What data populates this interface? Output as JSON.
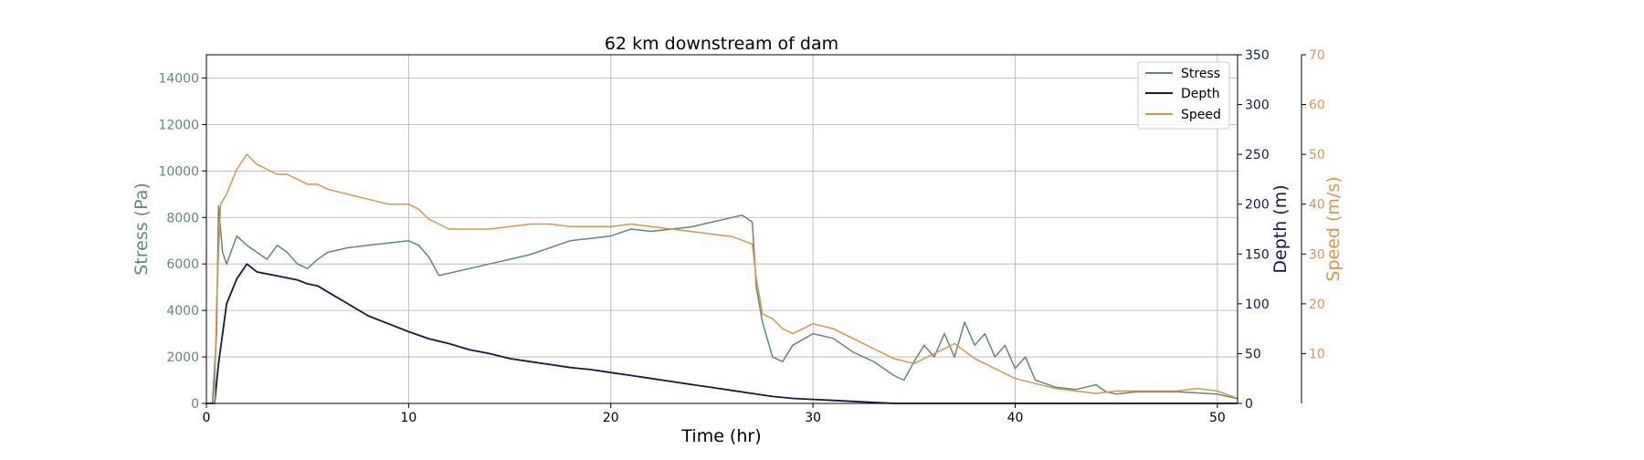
{
  "chart_data": {
    "type": "line",
    "title": "62 km downstream of dam",
    "xlabel": "Time (hr)",
    "xlim": [
      0,
      51
    ],
    "xticks": [
      0,
      10,
      20,
      30,
      40,
      50
    ],
    "grid": true,
    "legend": {
      "placement": "top-right",
      "entries": [
        "Stress",
        "Depth",
        "Speed"
      ]
    },
    "axes": {
      "stress": {
        "label": "Stress (Pa)",
        "side": "left",
        "ylim": [
          0,
          15000
        ],
        "ticks": [
          0,
          2000,
          4000,
          6000,
          8000,
          10000,
          12000,
          14000
        ],
        "color": "#5f8a72"
      },
      "depth": {
        "label": "Depth (m)",
        "side": "right",
        "ylim": [
          0,
          350
        ],
        "ticks": [
          0,
          50,
          100,
          150,
          200,
          250,
          300,
          350
        ],
        "color": "#0d1b4d"
      },
      "speed": {
        "label": "Speed (m/s)",
        "side": "right-outer",
        "ylim": [
          0,
          70
        ],
        "ticks": [
          10,
          20,
          30,
          40,
          50,
          60,
          70
        ],
        "color": "#d9954a"
      }
    },
    "series": [
      {
        "name": "Stress",
        "axis": "stress",
        "color": "#5f8a72",
        "x": [
          0,
          0.3,
          0.5,
          0.6,
          0.8,
          1,
          1.5,
          2,
          2.5,
          3,
          3.5,
          4,
          4.5,
          5,
          5.5,
          6,
          7,
          8,
          9,
          10,
          10.5,
          11,
          11.5,
          12,
          13,
          14,
          15,
          16,
          17,
          18,
          19,
          20,
          21,
          22,
          23,
          24,
          25,
          26,
          26.5,
          27,
          27.2,
          27.5,
          28,
          28.5,
          29,
          30,
          31,
          32,
          33,
          34,
          34.5,
          35,
          35.5,
          36,
          36.5,
          37,
          37.5,
          38,
          38.5,
          39,
          39.5,
          40,
          40.5,
          41,
          42,
          43,
          44,
          44.5,
          45,
          46,
          47,
          48,
          49,
          50,
          51
        ],
        "y": [
          0,
          0,
          3000,
          8500,
          6500,
          6000,
          7200,
          6800,
          6500,
          6200,
          6800,
          6500,
          6000,
          5800,
          6200,
          6500,
          6700,
          6800,
          6900,
          7000,
          6800,
          6300,
          5500,
          5600,
          5800,
          6000,
          6200,
          6400,
          6700,
          7000,
          7100,
          7200,
          7500,
          7400,
          7500,
          7600,
          7800,
          8000,
          8100,
          7800,
          5000,
          3500,
          2000,
          1800,
          2500,
          3000,
          2800,
          2200,
          1800,
          1200,
          1000,
          1800,
          2500,
          2000,
          3000,
          2000,
          3500,
          2500,
          3000,
          2000,
          2500,
          1500,
          2000,
          1000,
          700,
          600,
          800,
          500,
          400,
          500,
          500,
          500,
          450,
          400,
          200
        ]
      },
      {
        "name": "Depth",
        "axis": "depth",
        "color": "#0d1b4d",
        "x": [
          0,
          0.4,
          0.6,
          0.8,
          1,
          1.5,
          2,
          2.5,
          3,
          3.5,
          4,
          4.5,
          5,
          5.5,
          6,
          7,
          8,
          9,
          10,
          11,
          12,
          13,
          14,
          15,
          16,
          17,
          18,
          19,
          20,
          21,
          22,
          23,
          24,
          25,
          26,
          27,
          28,
          29,
          30,
          31,
          32,
          33,
          34,
          35,
          40,
          45,
          51
        ],
        "y": [
          0,
          0,
          40,
          70,
          100,
          125,
          140,
          132,
          130,
          128,
          126,
          124,
          120,
          118,
          112,
          100,
          88,
          80,
          72,
          65,
          60,
          54,
          50,
          45,
          42,
          39,
          36,
          34,
          31,
          28,
          25,
          22,
          19,
          16,
          13,
          10,
          7,
          5,
          4,
          3,
          2,
          1,
          0,
          0,
          0,
          0,
          0
        ]
      },
      {
        "name": "Speed",
        "axis": "speed",
        "color": "#d9954a",
        "x": [
          0,
          0.4,
          0.5,
          0.7,
          1,
          1.5,
          2,
          2.5,
          3,
          3.5,
          4,
          4.5,
          5,
          5.5,
          6,
          7,
          8,
          9,
          10,
          10.5,
          11,
          11.5,
          12,
          13,
          14,
          15,
          16,
          17,
          18,
          19,
          20,
          21,
          22,
          23,
          24,
          25,
          26,
          27,
          27.2,
          27.5,
          28,
          28.5,
          29,
          30,
          31,
          32,
          33,
          34,
          35,
          36,
          37,
          38,
          39,
          40,
          41,
          42,
          43,
          44,
          45,
          46,
          47,
          48,
          49,
          50,
          51
        ],
        "y": [
          0,
          0,
          20,
          40,
          42,
          47,
          50,
          48,
          47,
          46,
          46,
          45,
          44,
          44,
          43,
          42,
          41,
          40,
          40,
          39,
          37,
          36,
          35,
          35,
          35,
          35.5,
          36,
          36,
          35.5,
          35.5,
          35.5,
          36,
          35.5,
          35,
          34.5,
          34,
          33.5,
          32,
          25,
          18,
          17,
          15,
          14,
          16,
          15,
          13,
          11,
          9,
          8,
          10,
          12,
          9,
          7,
          5,
          4,
          3,
          2.5,
          2,
          2.5,
          2.5,
          2.5,
          2.5,
          3,
          2.5,
          1
        ]
      }
    ]
  }
}
